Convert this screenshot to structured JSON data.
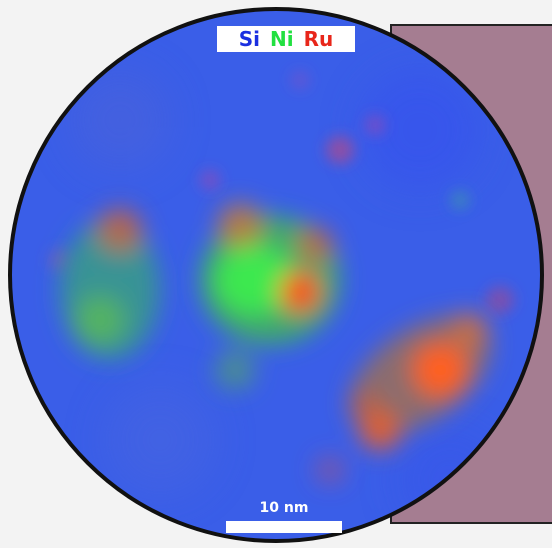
{
  "legend": {
    "items": [
      {
        "label": "Si",
        "color": "#1a2fe0"
      },
      {
        "label": "Ni",
        "color": "#22e040"
      },
      {
        "label": "Ru",
        "color": "#e8261a"
      }
    ]
  },
  "scale_bar": {
    "label": "10 nm"
  },
  "colors": {
    "background_blue": "#3a5ee8",
    "panel": "#a57d91",
    "border": "#111111"
  }
}
